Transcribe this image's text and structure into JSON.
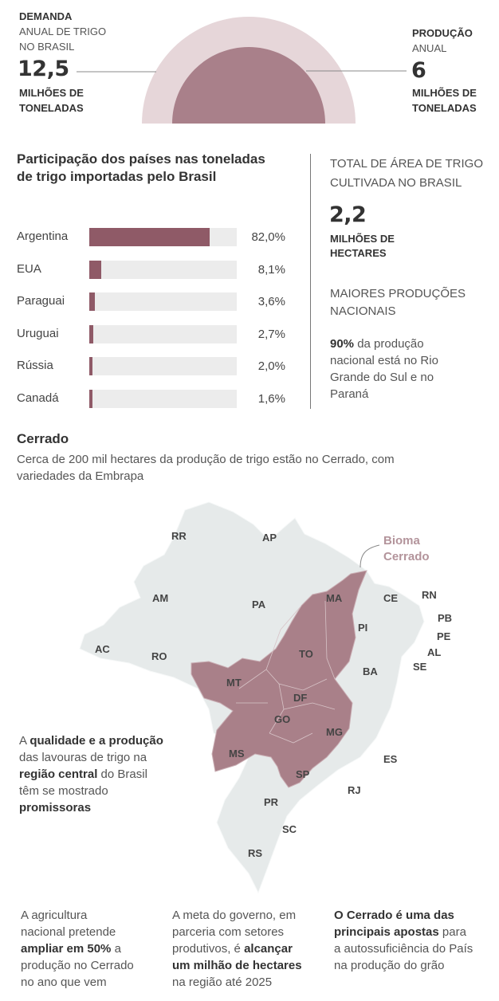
{
  "demand": {
    "line1": "DEMANDA",
    "line2": "ANUAL DE TRIGO",
    "line3": "NO BRASIL",
    "value": "12,5",
    "unit1": "MILHÕES DE",
    "unit2": "TONELADAS"
  },
  "production": {
    "line1": "PRODUÇÃO",
    "line2": "ANUAL",
    "value": "6",
    "unit1": "MILHÕES DE",
    "unit2": "TONELADAS"
  },
  "imports_chart_title_1": "Participação dos países nas toneladas",
  "imports_chart_title_2": "de trigo importadas pelo Brasil",
  "chart_data": {
    "type": "bar",
    "orientation": "horizontal",
    "categories": [
      "Argentina",
      "EUA",
      "Paraguai",
      "Uruguai",
      "Rússia",
      "Canadá"
    ],
    "values": [
      82.0,
      8.1,
      3.6,
      2.7,
      2.0,
      1.6
    ],
    "value_labels": [
      "82,0%",
      "8,1%",
      "3,6%",
      "2,7%",
      "2,0%",
      "1,6%"
    ],
    "xlim": [
      0,
      100
    ],
    "bar_color": "#8f5a67",
    "track_color": "#ececec"
  },
  "area": {
    "line1": "TOTAL DE ÁREA DE TRIGO",
    "line2": "CULTIVADA NO BRASIL",
    "value": "2,2",
    "unit1": "MILHÕES DE",
    "unit2": "HECTARES"
  },
  "largest": {
    "line1": "MAIORES PRODUÇÕES",
    "line2": "NACIONAIS",
    "pct": "90%",
    "text1": " da produção",
    "text2": "nacional está no Rio",
    "text3": "Grande do Sul e no",
    "text4": "Paraná"
  },
  "cerrado": {
    "title": "Cerrado",
    "sub1": "Cerca de 200 mil hectares da produção de trigo estão no Cerrado, com",
    "sub2": "variedades da Embrapa",
    "biome1": "Bioma",
    "biome2": "Cerrado"
  },
  "states": [
    "RR",
    "AP",
    "AM",
    "PA",
    "MA",
    "CE",
    "RN",
    "PB",
    "PE",
    "AL",
    "SE",
    "PI",
    "AC",
    "RO",
    "TO",
    "BA",
    "MT",
    "DF",
    "GO",
    "MG",
    "ES",
    "MS",
    "SP",
    "RJ",
    "PR",
    "SC",
    "RS"
  ],
  "quality": {
    "a": "A ",
    "b1": "qualidade e a produção",
    "c": "das lavouras de trigo na",
    "d1": "região central",
    "d2": " do Brasil",
    "e": "têm se mostrado",
    "f": "promissoras"
  },
  "bottom1": {
    "l1": "A agricultura",
    "l2": "nacional pretende",
    "l3b": "ampliar em 50%",
    "l3": " a",
    "l4": "produção no Cerrado",
    "l5": "no ano que vem"
  },
  "bottom2": {
    "l1": "A meta do governo, em",
    "l2": "parceria com setores",
    "l3": "produtivos, é ",
    "l3b": "alcançar",
    "l4b": "um milhão de hectares",
    "l5": "na região até 2025"
  },
  "bottom3": {
    "l1b": "O Cerrado é uma das",
    "l2b": "principais apostas",
    "l2": " para",
    "l3": "a autossuficiência do País",
    "l4": "na produção do grão"
  }
}
